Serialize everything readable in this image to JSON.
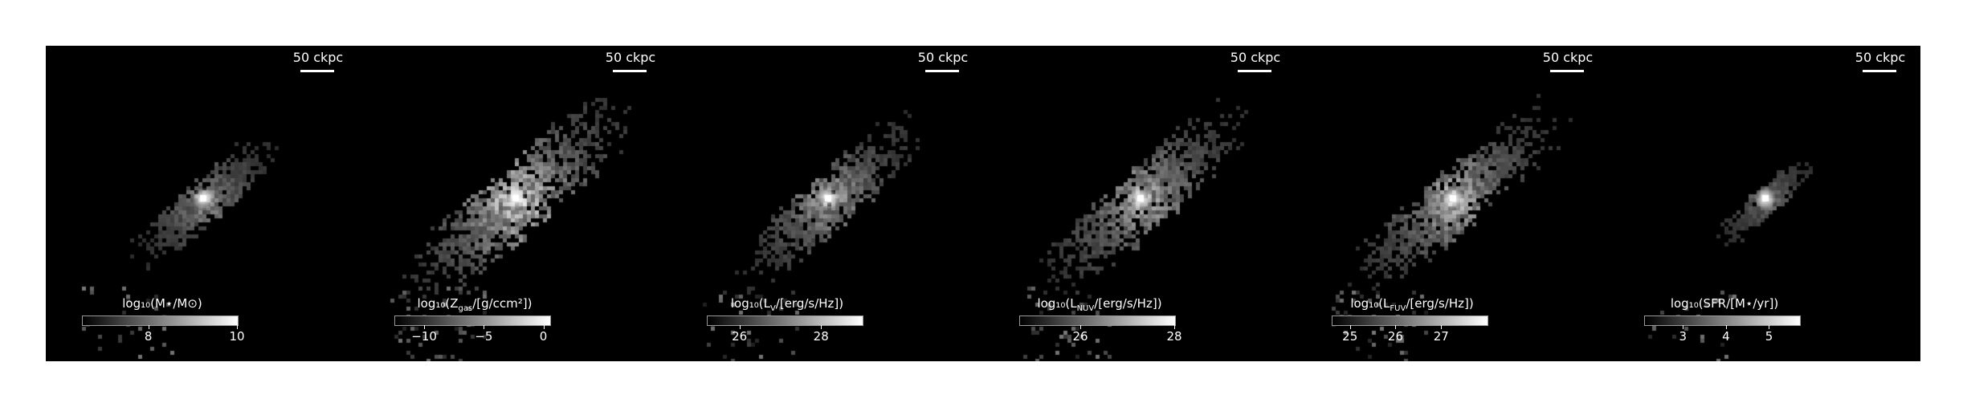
{
  "scale_label": "50 ckpc",
  "panels": [
    {
      "id": "mass",
      "colorbar_title": "log₁₀(M⋆/M⊙)",
      "range": [
        6.5,
        10.0
      ],
      "ticks": [
        {
          "value": 8,
          "label": "8"
        },
        {
          "value": 10,
          "label": "10"
        }
      ],
      "brightness": 0.55,
      "spread": 0.75,
      "seed": 11
    },
    {
      "id": "metallicity",
      "colorbar_title": "log₁₀(Z_gas/[g/ccm²])",
      "range": [
        -12.5,
        0.5
      ],
      "ticks": [
        {
          "value": -10,
          "label": "−10"
        },
        {
          "value": -5,
          "label": "−5"
        },
        {
          "value": 0,
          "label": "0"
        }
      ],
      "brightness": 0.9,
      "spread": 1.25,
      "seed": 23
    },
    {
      "id": "lum-v",
      "colorbar_title": "log₁₀(L_V/[erg/s/Hz])",
      "range": [
        25.2,
        29.0
      ],
      "ticks": [
        {
          "value": 26,
          "label": "26"
        },
        {
          "value": 28,
          "label": "28"
        }
      ],
      "brightness": 0.65,
      "spread": 1.0,
      "seed": 37
    },
    {
      "id": "lum-nuv",
      "colorbar_title": "log₁₀(L_NUV/[erg/s/Hz])",
      "range": [
        24.7,
        28.0
      ],
      "ticks": [
        {
          "value": 26,
          "label": "26"
        },
        {
          "value": 28,
          "label": "28"
        }
      ],
      "brightness": 0.7,
      "spread": 1.1,
      "seed": 41
    },
    {
      "id": "lum-fuv",
      "colorbar_title": "log₁₀(L_FUV/[erg/s/Hz])",
      "range": [
        24.6,
        28.0
      ],
      "ticks": [
        {
          "value": 25,
          "label": "25"
        },
        {
          "value": 26,
          "label": "26"
        },
        {
          "value": 27,
          "label": "27"
        }
      ],
      "brightness": 0.75,
      "spread": 1.1,
      "seed": 53
    },
    {
      "id": "sfr",
      "colorbar_title": "log₁₀(SFR/[M⋆/yr])",
      "range": [
        2.1,
        5.7
      ],
      "ticks": [
        {
          "value": 3,
          "label": "3"
        },
        {
          "value": 4,
          "label": "4"
        },
        {
          "value": 5,
          "label": "5"
        }
      ],
      "brightness": 0.45,
      "spread": 0.5,
      "seed": 67
    }
  ]
}
